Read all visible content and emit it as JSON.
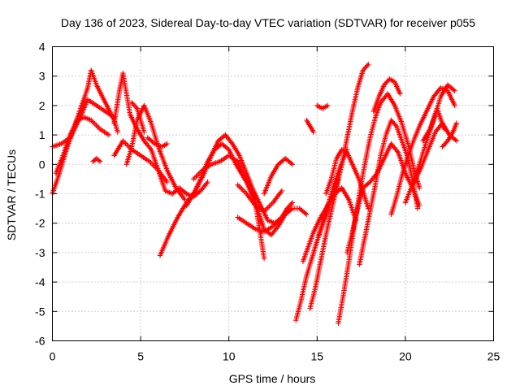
{
  "chart_data": {
    "type": "scatter",
    "title": "Day 136 of 2023, Sidereal Day-to-day VTEC variation (SDTVAR) for receiver p055",
    "xlabel": "GPS time / hours",
    "ylabel": "SDTVAR / TECUs",
    "xlim": [
      0,
      25
    ],
    "ylim": [
      -6,
      4
    ],
    "xticks": [
      "0",
      "5",
      "10",
      "15",
      "20",
      "25"
    ],
    "yticks": [
      "-6",
      "-5",
      "-4",
      "-3",
      "-2",
      "-1",
      "0",
      "1",
      "2",
      "3",
      "4"
    ],
    "grid": true,
    "legend": "none",
    "marker": "plus",
    "color": "#ff0000",
    "series": [
      {
        "x": [
          0.0,
          0.4,
          0.8,
          1.2,
          1.6,
          2.0,
          2.2,
          2.5,
          3.0,
          3.5,
          3.7
        ],
        "y": [
          -1.0,
          -0.3,
          0.5,
          1.2,
          1.9,
          2.6,
          3.2,
          2.7,
          2.1,
          1.5,
          1.1
        ]
      },
      {
        "x": [
          0.0,
          0.5,
          1.0,
          1.5,
          2.0,
          2.5,
          3.0,
          3.5
        ],
        "y": [
          0.6,
          0.7,
          0.9,
          1.5,
          2.2,
          2.0,
          1.8,
          1.6
        ]
      },
      {
        "x": [
          0.2,
          0.6,
          1.0,
          1.4,
          1.8,
          2.2,
          2.7,
          3.2
        ],
        "y": [
          -0.3,
          0.3,
          1.0,
          1.5,
          1.6,
          1.5,
          1.2,
          1.0
        ]
      },
      {
        "x": [
          2.3,
          2.5,
          2.7
        ],
        "y": [
          0.1,
          0.2,
          0.1
        ]
      },
      {
        "x": [
          3.5,
          3.8,
          4.0,
          4.2,
          4.4,
          4.8,
          5.2,
          5.6,
          6.0,
          6.4,
          6.8,
          7.2,
          7.6,
          8.0,
          8.4,
          8.8
        ],
        "y": [
          1.4,
          2.5,
          3.1,
          2.4,
          1.7,
          1.2,
          0.8,
          0.5,
          -0.2,
          -0.9,
          -1.0,
          -0.8,
          -1.0,
          -1.1,
          -0.9,
          -0.6
        ]
      },
      {
        "x": [
          3.5,
          4.0,
          4.5,
          5.0,
          5.5,
          6.0,
          6.5
        ],
        "y": [
          0.3,
          0.8,
          0.5,
          0.3,
          0.1,
          -0.2,
          -0.6
        ]
      },
      {
        "x": [
          4.2,
          4.5,
          4.8,
          5.2,
          5.6,
          6.0,
          6.5,
          7.0,
          7.5
        ],
        "y": [
          0.0,
          0.6,
          1.5,
          2.0,
          1.4,
          0.6,
          -0.2,
          -0.8,
          -1.2
        ]
      },
      {
        "x": [
          4.5,
          4.8,
          5.0,
          5.2
        ],
        "y": [
          2.1,
          1.9,
          1.5,
          1.1
        ]
      },
      {
        "x": [
          5.4,
          5.8,
          6.2,
          6.5
        ],
        "y": [
          0.9,
          0.7,
          0.6,
          0.7
        ]
      },
      {
        "x": [
          6.1,
          6.6,
          7.1,
          7.6,
          8.1,
          8.6,
          9.0,
          9.4,
          9.8,
          10.2,
          10.6,
          11.0,
          11.4,
          11.8,
          12.2,
          12.6,
          13.0,
          13.4
        ],
        "y": [
          -3.1,
          -2.4,
          -1.8,
          -1.3,
          -0.9,
          -0.3,
          0.3,
          0.8,
          1.0,
          0.7,
          0.3,
          -0.3,
          -0.9,
          -1.4,
          -1.9,
          -2.0,
          -1.8,
          -1.5
        ]
      },
      {
        "x": [
          7.6,
          8.0,
          8.4,
          8.8,
          9.2,
          9.6,
          10.0,
          10.4,
          10.8,
          11.2,
          11.6,
          12.0,
          12.4,
          12.8,
          13.2,
          13.6,
          14.0,
          14.4
        ],
        "y": [
          -1.4,
          -1.0,
          -0.5,
          0.1,
          0.5,
          0.7,
          0.5,
          0.0,
          -0.4,
          -0.8,
          -1.5,
          -2.2,
          -2.4,
          -2.1,
          -1.7,
          -1.5,
          -1.5,
          -1.7
        ]
      },
      {
        "x": [
          8.0,
          8.5,
          9.0,
          9.5,
          10.0,
          10.5,
          11.0,
          11.5,
          12.0
        ],
        "y": [
          -0.5,
          -0.2,
          0.0,
          0.1,
          0.3,
          0.1,
          -0.6,
          -1.3,
          -3.2
        ]
      },
      {
        "x": [
          10.5,
          11.0,
          11.5,
          12.0,
          12.5,
          13.0,
          13.3,
          13.6
        ],
        "y": [
          -1.8,
          -2.0,
          -2.2,
          -2.3,
          -2.1,
          -1.8,
          -1.5,
          -1.3
        ]
      },
      {
        "x": [
          10.5,
          11.0,
          11.5,
          12.0,
          12.5,
          13.0
        ],
        "y": [
          -0.7,
          -1.0,
          -1.4,
          -1.6,
          -1.3,
          -0.9
        ]
      },
      {
        "x": [
          12.0,
          12.4,
          12.8,
          13.2,
          13.6
        ],
        "y": [
          -1.0,
          -0.4,
          0.0,
          0.2,
          0.0
        ]
      },
      {
        "x": [
          13.8,
          14.1,
          14.4,
          14.7,
          15.0,
          15.4,
          15.8,
          16.2
        ],
        "y": [
          -5.3,
          -4.6,
          -3.8,
          -3.2,
          -2.6,
          -1.9,
          -1.2,
          -0.5
        ]
      },
      {
        "x": [
          14.2,
          14.5,
          14.8,
          15.2,
          15.6,
          16.0,
          16.4,
          16.8,
          17.2
        ],
        "y": [
          -3.3,
          -2.8,
          -2.3,
          -1.8,
          -1.4,
          -1.0,
          -0.8,
          -1.2,
          -1.9
        ]
      },
      {
        "x": [
          14.6,
          14.9,
          15.2,
          15.5,
          15.8,
          16.1,
          16.4,
          16.7,
          17.0,
          17.3,
          17.6,
          17.9
        ],
        "y": [
          -4.9,
          -4.2,
          -3.3,
          -2.4,
          -1.6,
          -0.8,
          0.0,
          0.9,
          1.8,
          2.6,
          3.2,
          3.4
        ]
      },
      {
        "x": [
          15.1,
          15.5,
          15.9,
          16.3,
          16.7
        ],
        "y": [
          -2.4,
          -1.6,
          -0.8,
          -0.1,
          0.5
        ]
      },
      {
        "x": [
          15.5,
          15.8,
          16.1,
          16.4,
          16.7,
          17.0,
          17.3,
          17.6,
          17.9
        ],
        "y": [
          -1.0,
          -0.5,
          0.2,
          0.5,
          0.4,
          0.0,
          -0.4,
          -0.9,
          -1.5
        ]
      },
      {
        "x": [
          14.4,
          14.6,
          14.8
        ],
        "y": [
          1.5,
          1.3,
          1.1
        ]
      },
      {
        "x": [
          15.0,
          15.3,
          15.6
        ],
        "y": [
          2.0,
          1.9,
          2.0
        ]
      },
      {
        "x": [
          16.2,
          16.5,
          16.8,
          17.1,
          17.4,
          17.7,
          18.0,
          18.3,
          18.6,
          19.0,
          19.4,
          19.8,
          20.2,
          20.5,
          20.8
        ],
        "y": [
          -5.4,
          -4.4,
          -3.3,
          -2.1,
          -1.0,
          0.0,
          0.9,
          1.6,
          2.1,
          2.4,
          2.0,
          1.4,
          0.6,
          -0.2,
          -0.8
        ]
      },
      {
        "x": [
          16.7,
          17.0,
          17.3,
          17.6,
          18.0,
          18.4,
          18.8,
          19.2,
          19.6,
          20.0,
          20.4,
          20.8
        ],
        "y": [
          -3.0,
          -2.3,
          -1.5,
          -0.8,
          -0.6,
          -0.3,
          0.2,
          0.7,
          0.4,
          -0.3,
          -0.8,
          -1.4
        ]
      },
      {
        "x": [
          17.4,
          17.7,
          18.0,
          18.3,
          18.6,
          18.9,
          19.2,
          19.5,
          19.8,
          20.1,
          20.4,
          20.7
        ],
        "y": [
          -3.4,
          -2.5,
          -1.6,
          -0.7,
          0.3,
          1.0,
          1.5,
          1.3,
          0.8,
          0.3,
          -0.5,
          -1.5
        ]
      },
      {
        "x": [
          18.2,
          18.5,
          18.8,
          19.1,
          19.4,
          19.7
        ],
        "y": [
          1.8,
          2.3,
          2.7,
          2.9,
          2.8,
          2.4
        ]
      },
      {
        "x": [
          19.2,
          19.5,
          19.8,
          20.1,
          20.4,
          20.8,
          21.2,
          21.6,
          22.0,
          22.4,
          22.8
        ],
        "y": [
          -1.7,
          -1.1,
          -0.4,
          0.2,
          0.7,
          1.3,
          1.8,
          2.3,
          2.6,
          2.5,
          2.0
        ]
      },
      {
        "x": [
          20.0,
          20.4,
          20.8,
          21.2,
          21.6,
          22.0,
          22.4,
          22.8
        ],
        "y": [
          -1.3,
          -0.7,
          0.0,
          0.8,
          1.5,
          2.3,
          2.7,
          2.5
        ]
      },
      {
        "x": [
          20.5,
          20.9,
          21.3,
          21.7,
          22.1,
          22.5,
          22.9
        ],
        "y": [
          -0.6,
          -0.1,
          0.5,
          1.1,
          1.4,
          1.0,
          0.8
        ]
      },
      {
        "x": [
          22.1,
          22.4,
          22.7,
          22.9
        ],
        "y": [
          0.6,
          0.8,
          1.1,
          1.4
        ]
      },
      {
        "x": [
          21.0,
          21.4,
          21.8,
          22.2
        ],
        "y": [
          0.8,
          1.2,
          1.9,
          1.2
        ]
      }
    ]
  }
}
